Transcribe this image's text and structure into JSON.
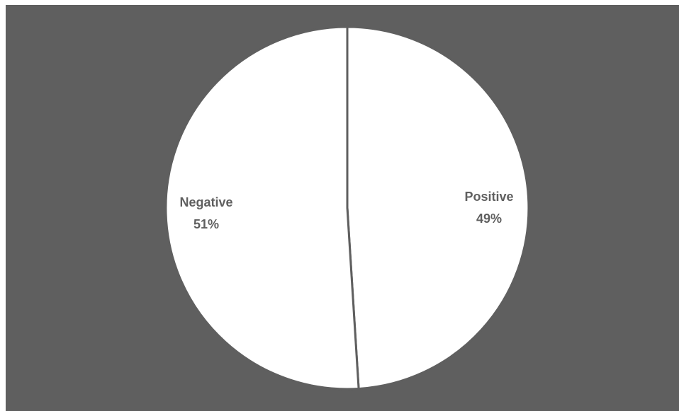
{
  "chart_data": {
    "type": "pie",
    "slices": [
      {
        "label": "Positive",
        "value": 49,
        "value_label": "49%"
      },
      {
        "label": "Negative",
        "value": 51,
        "value_label": "51%"
      }
    ],
    "title": "",
    "legend": "none",
    "colors": {
      "background": "#5f5f5f",
      "slice_fill": "#ffffff",
      "slice_stroke": "#5f5f5f",
      "label_text": "#5f5f5f"
    }
  }
}
